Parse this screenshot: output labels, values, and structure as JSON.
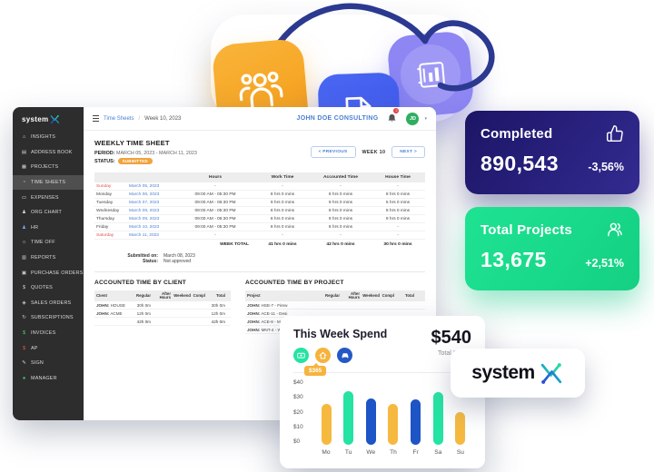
{
  "app": {
    "logo_text": "system",
    "sidebar": {
      "items": [
        {
          "label": "INSIGHTS",
          "icon": "⌂"
        },
        {
          "label": "ADDRESS BOOK",
          "icon": "▤"
        },
        {
          "label": "PROJECTS",
          "icon": "▦"
        },
        {
          "label": "TIME SHEETS",
          "icon": "◔"
        },
        {
          "label": "EXPENSES",
          "icon": "▭"
        },
        {
          "label": "ORG CHART",
          "icon": "♟"
        },
        {
          "label": "HR",
          "icon": "♟"
        },
        {
          "label": "TIME OFF",
          "icon": "☼"
        },
        {
          "label": "REPORTS",
          "icon": "▥"
        },
        {
          "label": "PURCHASE ORDERS",
          "icon": "▣"
        },
        {
          "label": "QUOTES",
          "icon": "$"
        },
        {
          "label": "SALES ORDERS",
          "icon": "◈"
        },
        {
          "label": "SUBSCRIPTIONS",
          "icon": "↻"
        },
        {
          "label": "INVOICES",
          "icon": "$"
        },
        {
          "label": "AP",
          "icon": "$"
        },
        {
          "label": "SIGN",
          "icon": "✎"
        },
        {
          "label": "MANAGER",
          "icon": "●"
        }
      ]
    },
    "topbar": {
      "breadcrumb": "Time Sheets",
      "separator": "/",
      "current": "Week 10, 2023",
      "company": "JOHN DOE CONSULTING",
      "notifications": "2",
      "avatar_initials": "JD"
    },
    "timesheet": {
      "title": "WEEKLY TIME SHEET",
      "period_label": "PERIOD:",
      "period": "MARCH 05, 2023 - MARCH 11, 2023",
      "status_label": "STATUS:",
      "status": "SUBMITTED",
      "prev_label": "< PREVIOUS",
      "week_label": "WEEK 10",
      "next_label": "NEXT >",
      "columns": [
        "Hours",
        "Work Time",
        "Accounted Time",
        "House Time"
      ],
      "rows": [
        {
          "day": "Sunday",
          "date": "March 05, 2023",
          "hours": "-",
          "work": "-",
          "accounted": "-",
          "house": "-"
        },
        {
          "day": "Monday",
          "date": "March 06, 2023",
          "hours": "09:00 AM - 05:30 PM",
          "work": "8 hrs 0 mins",
          "accounted": "8 hrs 0 mins",
          "house": "8 hrs 0 mins"
        },
        {
          "day": "Tuesday",
          "date": "March 07, 2023",
          "hours": "09:00 AM - 06:30 PM",
          "work": "9 hrs 0 mins",
          "accounted": "9 hrs 0 mins",
          "house": "5 hrs 0 mins"
        },
        {
          "day": "Wednesday",
          "date": "March 08, 2023",
          "hours": "09:00 AM - 05:30 PM",
          "work": "8 hrs 0 mins",
          "accounted": "8 hrs 0 mins",
          "house": "8 hrs 0 mins"
        },
        {
          "day": "Thursday",
          "date": "March 09, 2023",
          "hours": "09:00 AM - 06:30 PM",
          "work": "8 hrs 0 mins",
          "accounted": "9 hrs 0 mins",
          "house": "9 hrs 0 mins"
        },
        {
          "day": "Friday",
          "date": "March 10, 2023",
          "hours": "09:00 AM - 05:30 PM",
          "work": "8 hrs 0 mins",
          "accounted": "8 hrs 0 mins",
          "house": "-"
        },
        {
          "day": "Saturday",
          "date": "March 11, 2023",
          "hours": "-",
          "work": "-",
          "accounted": "-",
          "house": "-"
        }
      ],
      "total_label": "WEEK TOTAL",
      "totals": {
        "work": "41 hrs 0 mins",
        "accounted": "42 hrs 0 mins",
        "house": "30 hrs 0 mins"
      },
      "submitted_on_label": "Submitted on:",
      "submitted_on": "March 08, 2023",
      "approval_label": "Status:",
      "approval": "Not approved"
    },
    "client_table": {
      "title": "ACCOUNTED TIME BY CLIENT",
      "columns": [
        "Client",
        "Regular",
        "After Hours",
        "Weekend",
        "Compl",
        "Total"
      ],
      "rows": [
        {
          "owner": "JOHN:",
          "name": "HOUSE",
          "regular": "30h 0m",
          "total": "30h 0m"
        },
        {
          "owner": "JOHN:",
          "name": "ACME",
          "regular": "12h 0m",
          "total": "12h 0m"
        }
      ],
      "total_regular": "42h 0m",
      "total_total": "42h 0m"
    },
    "project_table": {
      "title": "ACCOUNTED TIME BY PROJECT",
      "columns": [
        "Project",
        "Regular",
        "After Hours",
        "Weekend",
        "Compl",
        "Total"
      ],
      "rows": [
        {
          "owner": "JOHN:",
          "name": "HSE-7 - Firew"
        },
        {
          "owner": "JOHN:",
          "name": "ACE-11 - Desi"
        },
        {
          "owner": "JOHN:",
          "name": "ACE-8 - Maxin"
        },
        {
          "owner": "JOHN:",
          "name": "MNT-4 - Westi"
        }
      ]
    }
  },
  "stats": {
    "completed": {
      "title": "Completed",
      "value": "890,543",
      "change": "-3,56%",
      "icon": "thumbs-up",
      "color": "#241b6e"
    },
    "projects": {
      "title": "Total Projects",
      "value": "13,675",
      "change": "+2,51%",
      "icon": "users",
      "color": "#1ade8e"
    }
  },
  "spend_card": {
    "title": "This Week Spend",
    "tooltip_value": "$365",
    "total_value": "$540",
    "total_label": "Total Spend",
    "category_icons": [
      "cash-icon",
      "home-icon",
      "car-icon"
    ]
  },
  "chart_data": {
    "type": "bar",
    "title": "This Week Spend",
    "categories": [
      "Mo",
      "Tu",
      "We",
      "Th",
      "Fr",
      "Sa",
      "Su"
    ],
    "values": [
      27,
      36,
      31,
      27,
      30,
      35,
      22
    ],
    "colors": [
      "#f6b93f",
      "#25e3a2",
      "#1d54c6",
      "#f6b93f",
      "#1d54c6",
      "#25e3a2",
      "#f6b93f"
    ],
    "ylim": [
      0,
      40
    ],
    "ytick_labels": [
      "$0",
      "$10",
      "$20",
      "$30",
      "$40"
    ],
    "grid": false,
    "legend": false
  },
  "brand": {
    "name": "system"
  },
  "colors": {
    "accent_blue": "#4a7fd4",
    "badge_orange": "#f0a23c",
    "weekend_red": "#e05252",
    "sidebar_bg": "#2d2d2d",
    "avatar_green": "#2fae60",
    "arrow_navy": "#2b3990",
    "card_orange": "#f5a623",
    "card_blue": "#4360ee",
    "card_purple": "#8d86f3"
  }
}
